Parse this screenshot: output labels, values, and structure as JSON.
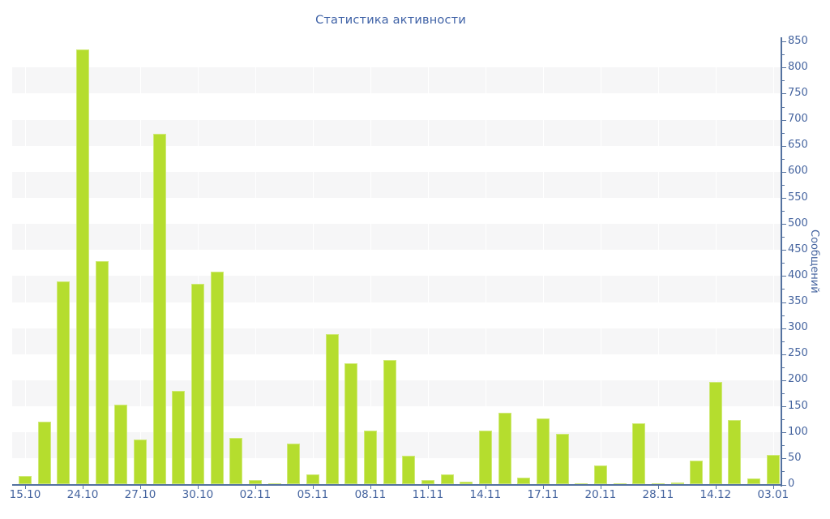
{
  "chart_data": {
    "type": "bar",
    "title": "Статистика активности",
    "xlabel": "",
    "ylabel": "Сообщений",
    "ylim": [
      0,
      850
    ],
    "y_tick_step": 50,
    "y_minor_tick_step": 25,
    "grid": "horizontal-bands",
    "legend_position": "none",
    "bar_color": "#b5dd2e",
    "axis_color": "#53719f",
    "text_color": "#45649f",
    "band_color": "#f6f6f7",
    "values": [
      16,
      120,
      390,
      835,
      429,
      154,
      87,
      673,
      180,
      385,
      408,
      90,
      8,
      2,
      78,
      19,
      289,
      232,
      104,
      239,
      55,
      8,
      19,
      6,
      104,
      137,
      13,
      127,
      97,
      2,
      36,
      2,
      118,
      2,
      4,
      46,
      197,
      123,
      12,
      57
    ],
    "tick_every": 3,
    "tick_labels": [
      "15.10",
      "24.10",
      "27.10",
      "30.10",
      "02.11",
      "05.11",
      "08.11",
      "11.11",
      "14.11",
      "17.11",
      "20.11",
      "28.11",
      "14.12",
      "03.01"
    ],
    "y_tick_values": [
      0,
      50,
      100,
      150,
      200,
      250,
      300,
      350,
      400,
      450,
      500,
      550,
      600,
      650,
      700,
      750,
      800,
      850
    ]
  }
}
